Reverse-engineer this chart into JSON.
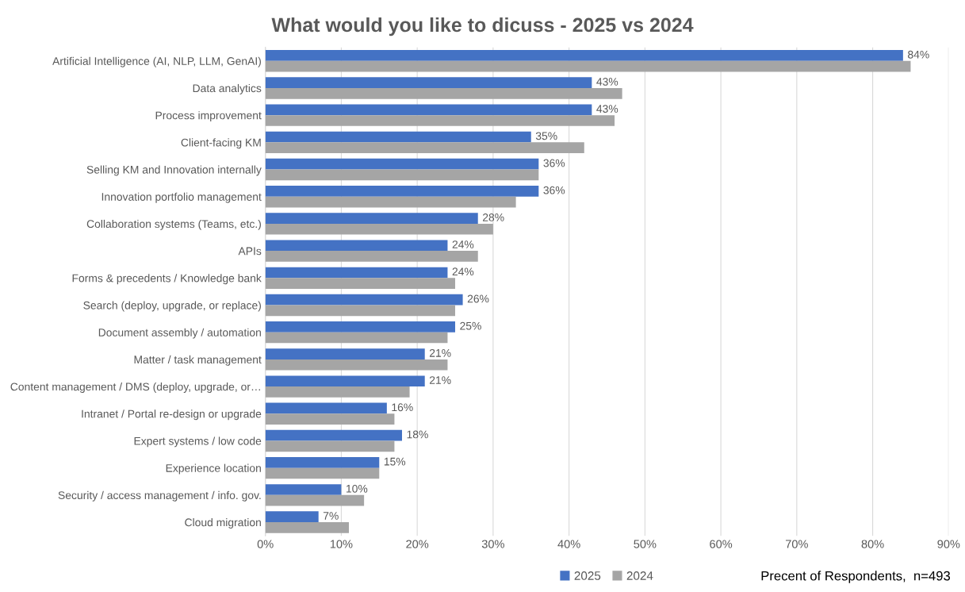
{
  "chart_data": {
    "type": "bar",
    "orientation": "horizontal",
    "title": "What would you like to dicuss - 2025 vs 2024",
    "categories": [
      "Artificial Intelligence (AI, NLP, LLM, GenAI)",
      "Data analytics",
      "Process improvement",
      "Client-facing KM",
      "Selling KM and Innovation internally",
      "Innovation portfolio management",
      "Collaboration systems (Teams, etc.)",
      "APIs",
      "Forms & precedents / Knowledge bank",
      "Search (deploy, upgrade, or replace)",
      "Document assembly / automation",
      "Matter / task management",
      "Content management / DMS (deploy, upgrade, or…",
      "Intranet / Portal re-design or upgrade",
      "Expert systems / low code",
      "Experience location",
      "Security / access management / info. gov.",
      "Cloud migration"
    ],
    "series": [
      {
        "name": "2025",
        "color": "#4472c4",
        "values": [
          84,
          43,
          43,
          35,
          36,
          36,
          28,
          24,
          24,
          26,
          25,
          21,
          21,
          16,
          18,
          15,
          10,
          7
        ],
        "value_labels": [
          "84%",
          "43%",
          "43%",
          "35%",
          "36%",
          "36%",
          "28%",
          "24%",
          "24%",
          "26%",
          "25%",
          "21%",
          "21%",
          "16%",
          "18%",
          "15%",
          "10%",
          "7%"
        ]
      },
      {
        "name": "2024",
        "color": "#a5a5a5",
        "values": [
          85,
          47,
          46,
          42,
          36,
          33,
          30,
          28,
          25,
          25,
          24,
          24,
          19,
          17,
          17,
          15,
          13,
          11
        ]
      }
    ],
    "xlim": [
      0,
      90
    ],
    "xticks": [
      {
        "value": 0,
        "label": "0%"
      },
      {
        "value": 10,
        "label": "10%"
      },
      {
        "value": 20,
        "label": "20%"
      },
      {
        "value": 30,
        "label": "30%"
      },
      {
        "value": 40,
        "label": "40%"
      },
      {
        "value": 50,
        "label": "50%"
      },
      {
        "value": 60,
        "label": "60%"
      },
      {
        "value": 70,
        "label": "70%"
      },
      {
        "value": 80,
        "label": "80%"
      },
      {
        "value": 90,
        "label": "90%"
      }
    ],
    "grid": "x",
    "legend": "bottom",
    "annotations": [
      "Precent of Respondents,  n=493"
    ]
  }
}
